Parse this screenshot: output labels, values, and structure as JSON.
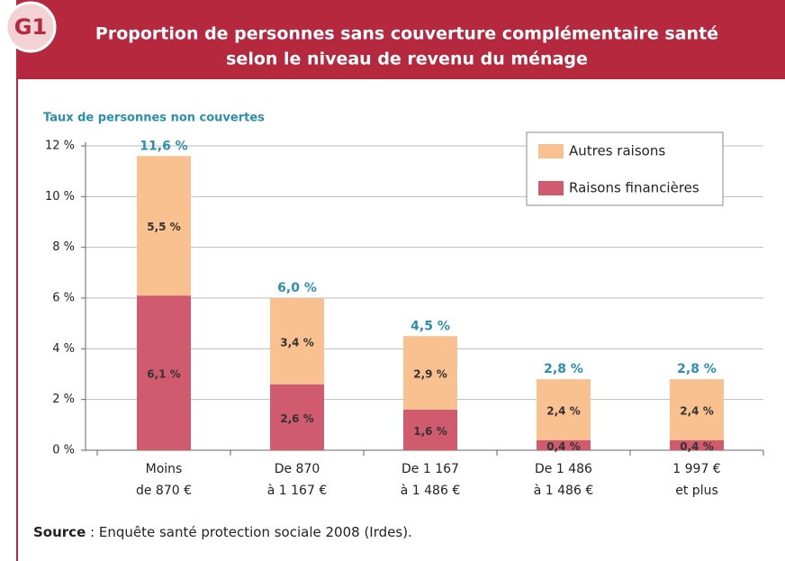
{
  "chart_data": {
    "type": "stacked_bar",
    "figure_label": "G1",
    "title": [
      "Proportion de personnes sans couverture complémentaire santé",
      "selon le niveau de revenu du ménage"
    ],
    "y_axis_label": "Taux de personnes non couvertes",
    "categories": [
      [
        "Moins",
        "de 870 €"
      ],
      [
        "De 870",
        "à 1 167 €"
      ],
      [
        "De  1 167",
        "à 1 486 €"
      ],
      [
        "De  1 486",
        "à 1 486 €"
      ],
      [
        "1 997 €",
        "et plus"
      ]
    ],
    "series": [
      {
        "name": "Raisons financières",
        "color": "#d05a6e",
        "values": [
          6.1,
          2.6,
          1.6,
          0.4,
          0.4
        ],
        "value_labels": [
          "6,1 %",
          "2,6 %",
          "1,6 %",
          "0,4 %",
          "0,4 %"
        ]
      },
      {
        "name": "Autres raisons",
        "color": "#f9c18f",
        "values": [
          5.5,
          3.4,
          2.9,
          2.4,
          2.4
        ],
        "value_labels": [
          "5,5 %",
          "3,4 %",
          "2,9 %",
          "2,4 %",
          "2,4 %"
        ]
      }
    ],
    "totals": {
      "values": [
        11.6,
        6.0,
        4.5,
        2.8,
        2.8
      ],
      "value_labels": [
        "11,6 %",
        "6,0 %",
        "4,5 %",
        "2,8 %",
        "2,8 %"
      ]
    },
    "ylim": [
      0,
      12
    ],
    "yticks": [
      {
        "value": 0,
        "label": "0 %"
      },
      {
        "value": 2,
        "label": "2 %"
      },
      {
        "value": 4,
        "label": "4 %"
      },
      {
        "value": 6,
        "label": "6 %"
      },
      {
        "value": 8,
        "label": "8 %"
      },
      {
        "value": 10,
        "label": "10 %"
      },
      {
        "value": 12,
        "label": "12 %"
      }
    ],
    "grid": true,
    "legend": "top-right",
    "source_label": "Source",
    "source": " : Enquête santé protection sociale 2008 (Irdes)."
  }
}
